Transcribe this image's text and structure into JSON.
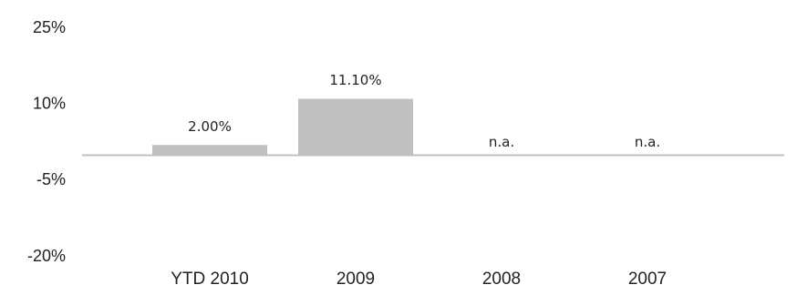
{
  "chart_data": {
    "type": "bar",
    "categories": [
      "YTD 2010",
      "2009",
      "2008",
      "2007"
    ],
    "values": [
      2.0,
      11.1,
      null,
      null
    ],
    "data_labels": [
      "2.00%",
      "11.10%",
      "n.a.",
      "n.a."
    ],
    "y_ticks": [
      25,
      10,
      -5,
      -20
    ],
    "y_tick_labels": [
      "25%",
      "10%",
      "-5%",
      "-20%"
    ],
    "ylim": [
      -20,
      25
    ],
    "grid": false,
    "legend": "none",
    "colors": {
      "bar": "#c0c0c0",
      "zero_line": "#c0c0c0",
      "text": "#222222"
    }
  }
}
